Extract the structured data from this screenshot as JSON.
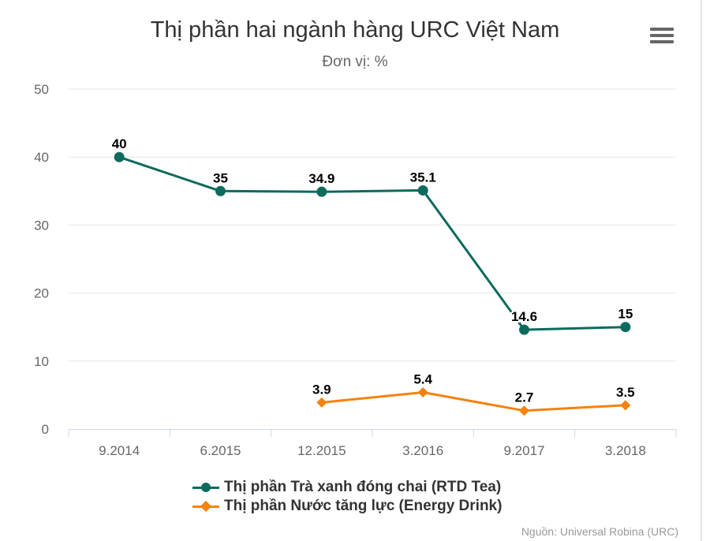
{
  "header": {
    "title": "Thị phần hai ngành hàng URC Việt Nam",
    "subtitle": "Đơn vị: %",
    "menu_icon": "hamburger-menu-icon"
  },
  "credit": "Nguồn: Universal Robina (URC)",
  "colors": {
    "tea": "#0d6b5e",
    "energy": "#f5820f",
    "grid": "#e6e6e6",
    "axis_text": "#666666"
  },
  "chart_data": {
    "type": "line",
    "title": "Thị phần hai ngành hàng URC Việt Nam",
    "subtitle": "Đơn vị: %",
    "categories": [
      "9.2014",
      "6.2015",
      "12.2015",
      "3.2016",
      "9.2017",
      "3.2018"
    ],
    "yticks": [
      "0",
      "10",
      "20",
      "30",
      "40",
      "50"
    ],
    "ylim": [
      0,
      50
    ],
    "grid": true,
    "legend_position": "bottom-center",
    "series": [
      {
        "name": "Thị phần Trà xanh đóng chai (RTD Tea)",
        "marker": "circle",
        "color": "#0d6b5e",
        "values": [
          40,
          35,
          34.9,
          35.1,
          14.6,
          15
        ],
        "labels": [
          "40",
          "35",
          "34.9",
          "35.1",
          "14.6",
          "15"
        ]
      },
      {
        "name": "Thị phần Nước tăng lực (Energy Drink)",
        "marker": "diamond",
        "color": "#f5820f",
        "values": [
          null,
          null,
          3.9,
          5.4,
          2.7,
          3.5
        ],
        "labels": [
          "",
          "",
          "3.9",
          "5.4",
          "2.7",
          "3.5"
        ]
      }
    ]
  }
}
